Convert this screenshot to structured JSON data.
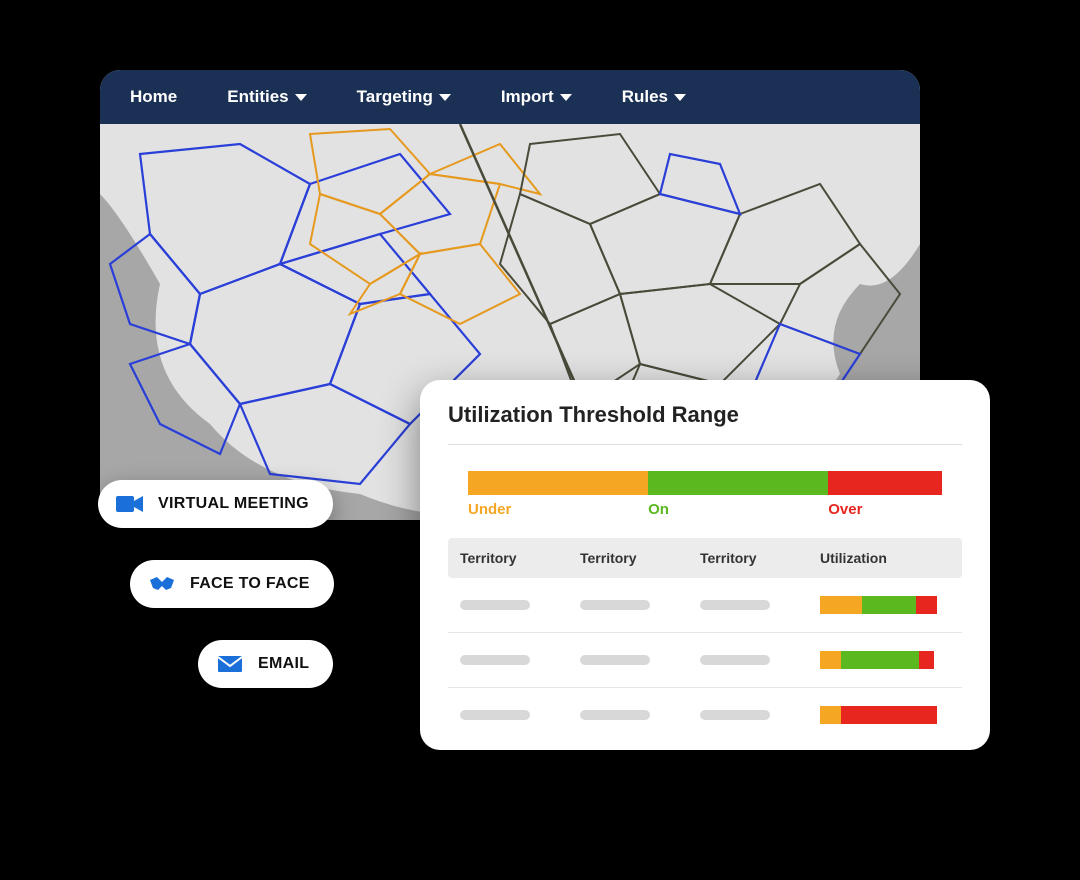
{
  "colors": {
    "navbar_bg": "#1a3054",
    "under": "#f5a623",
    "on": "#5bb81f",
    "over": "#e6261f",
    "accent": "#1a6fd8",
    "map_fill": "#e2e2e2",
    "map_bg": "#a7a7a7",
    "map_stroke_blue": "#2a3fd8",
    "map_stroke_orange": "#e6991f",
    "map_stroke_dark": "#4a4a3a",
    "skeleton": "#d8d8d8"
  },
  "nav": {
    "items": [
      {
        "label": "Home",
        "dropdown": false
      },
      {
        "label": "Entities",
        "dropdown": true
      },
      {
        "label": "Targeting",
        "dropdown": true
      },
      {
        "label": "Import",
        "dropdown": true
      },
      {
        "label": "Rules",
        "dropdown": true
      }
    ]
  },
  "chips": [
    {
      "label": "VIRTUAL MEETING",
      "icon": "camera-icon"
    },
    {
      "label": "FACE TO FACE",
      "icon": "handshake-icon"
    },
    {
      "label": "EMAIL",
      "icon": "envelope-icon"
    }
  ],
  "panel": {
    "title": "Utilization Threshold Range",
    "range": {
      "segments": [
        {
          "key": "under",
          "label": "Under",
          "width_pct": 38,
          "color": "#f5a623"
        },
        {
          "key": "on",
          "label": "On",
          "width_pct": 38,
          "color": "#5bb81f"
        },
        {
          "key": "over",
          "label": "Over",
          "width_pct": 24,
          "color": "#e6261f"
        }
      ]
    },
    "table": {
      "columns": [
        "Territory",
        "Territory",
        "Territory",
        "Utilization"
      ],
      "rows": [
        {
          "utilization": [
            {
              "color": "#f5a623",
              "width_pct": 32
            },
            {
              "color": "#5bb81f",
              "width_pct": 42
            },
            {
              "color": "#e6261f",
              "width_pct": 16
            }
          ]
        },
        {
          "utilization": [
            {
              "color": "#f5a623",
              "width_pct": 16
            },
            {
              "color": "#5bb81f",
              "width_pct": 60
            },
            {
              "color": "#e6261f",
              "width_pct": 12
            }
          ]
        },
        {
          "utilization": [
            {
              "color": "#f5a623",
              "width_pct": 16
            },
            {
              "color": "#e6261f",
              "width_pct": 74
            }
          ]
        }
      ]
    }
  }
}
